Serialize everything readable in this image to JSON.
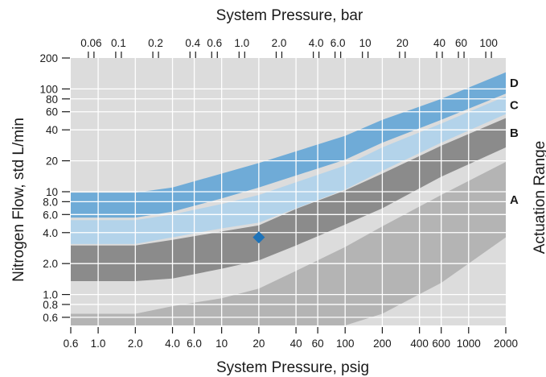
{
  "chart_data": {
    "type": "area",
    "title": "System Pressure, bar",
    "xlabel": "System Pressure, psig",
    "ylabel": "Nitrogen Flow, std L/min",
    "right_label": "Actuation Range",
    "x_scale": "log",
    "y_scale": "log",
    "xlim": [
      0.6,
      2000
    ],
    "ylim": [
      0.5,
      200
    ],
    "x2lim_bar": [
      0.041,
      137.9
    ],
    "x_ticks": [
      0.6,
      1.0,
      2.0,
      4.0,
      6.0,
      10,
      20,
      40,
      60,
      100,
      200,
      400,
      600,
      1000,
      2000
    ],
    "x_tick_labels": [
      "0.6",
      "1.0",
      "2.0",
      "4.0",
      "6.0",
      "10",
      "20",
      "40",
      "60",
      "100",
      "200",
      "400",
      "600",
      "1000",
      "2000"
    ],
    "x_top_ticks": [
      0.06,
      0.1,
      0.2,
      0.4,
      0.6,
      1.0,
      2.0,
      4.0,
      6.0,
      10,
      20,
      40,
      60,
      100
    ],
    "x_top_tick_labels": [
      "0.06",
      "0.1",
      "0.2",
      "0.4",
      "0.6",
      "1.0",
      "2.0",
      "4.0",
      "6.0",
      "10",
      "20",
      "40",
      "60",
      "100"
    ],
    "y_ticks": [
      0.6,
      0.8,
      1.0,
      2.0,
      4.0,
      6.0,
      8.0,
      10,
      20,
      40,
      60,
      80,
      100,
      200
    ],
    "y_tick_labels": [
      "0.6",
      "0.8",
      "1.0",
      "2.0",
      "4.0",
      "6.0",
      "8.0",
      "10",
      "20",
      "40",
      "60",
      "80",
      "100",
      "200"
    ],
    "grid": true,
    "series": [
      {
        "name": "D",
        "color": "#6fabd7",
        "x": [
          0.6,
          2.0,
          4.0,
          10,
          20,
          100,
          200,
          600,
          2000
        ],
        "upper": [
          9.8,
          9.8,
          11,
          15,
          19,
          35,
          50,
          80,
          145
        ],
        "lower": [
          5.6,
          5.6,
          6.4,
          8.6,
          11,
          20.5,
          30,
          50,
          90
        ]
      },
      {
        "name": "C",
        "color": "#b3d3ea",
        "x": [
          0.6,
          2.0,
          4.0,
          10,
          20,
          100,
          200,
          600,
          2000
        ],
        "upper": [
          5.3,
          5.3,
          6.0,
          7.6,
          9.3,
          18,
          27,
          46,
          85
        ],
        "lower": [
          3.1,
          3.1,
          3.6,
          4.4,
          5.0,
          10.5,
          16,
          30,
          57
        ]
      },
      {
        "name": "B",
        "color": "#8b8b8b",
        "x": [
          0.6,
          2.0,
          4.0,
          10,
          20,
          40,
          100,
          200,
          600,
          2000
        ],
        "upper": [
          3.0,
          3.0,
          3.4,
          4.1,
          4.7,
          6.8,
          10.3,
          15,
          28,
          52
        ],
        "lower": [
          1.35,
          1.35,
          1.43,
          1.78,
          2.15,
          3.0,
          4.8,
          6.9,
          14,
          27
        ]
      },
      {
        "name": "A",
        "color": "#b4b4b4",
        "x": [
          0.6,
          2.0,
          4.0,
          10,
          20,
          40,
          100,
          200,
          600,
          2000
        ],
        "upper": [
          0.65,
          0.65,
          0.77,
          0.92,
          1.14,
          1.7,
          2.9,
          4.6,
          9.3,
          19.5
        ],
        "lower": [
          0.5,
          0.5,
          0.5,
          0.5,
          0.5,
          0.5,
          0.5,
          0.65,
          1.3,
          3.6
        ]
      }
    ],
    "highlight_point": {
      "x": 20,
      "y": 3.6,
      "color": "#1e73b8",
      "marker": "diamond"
    }
  }
}
